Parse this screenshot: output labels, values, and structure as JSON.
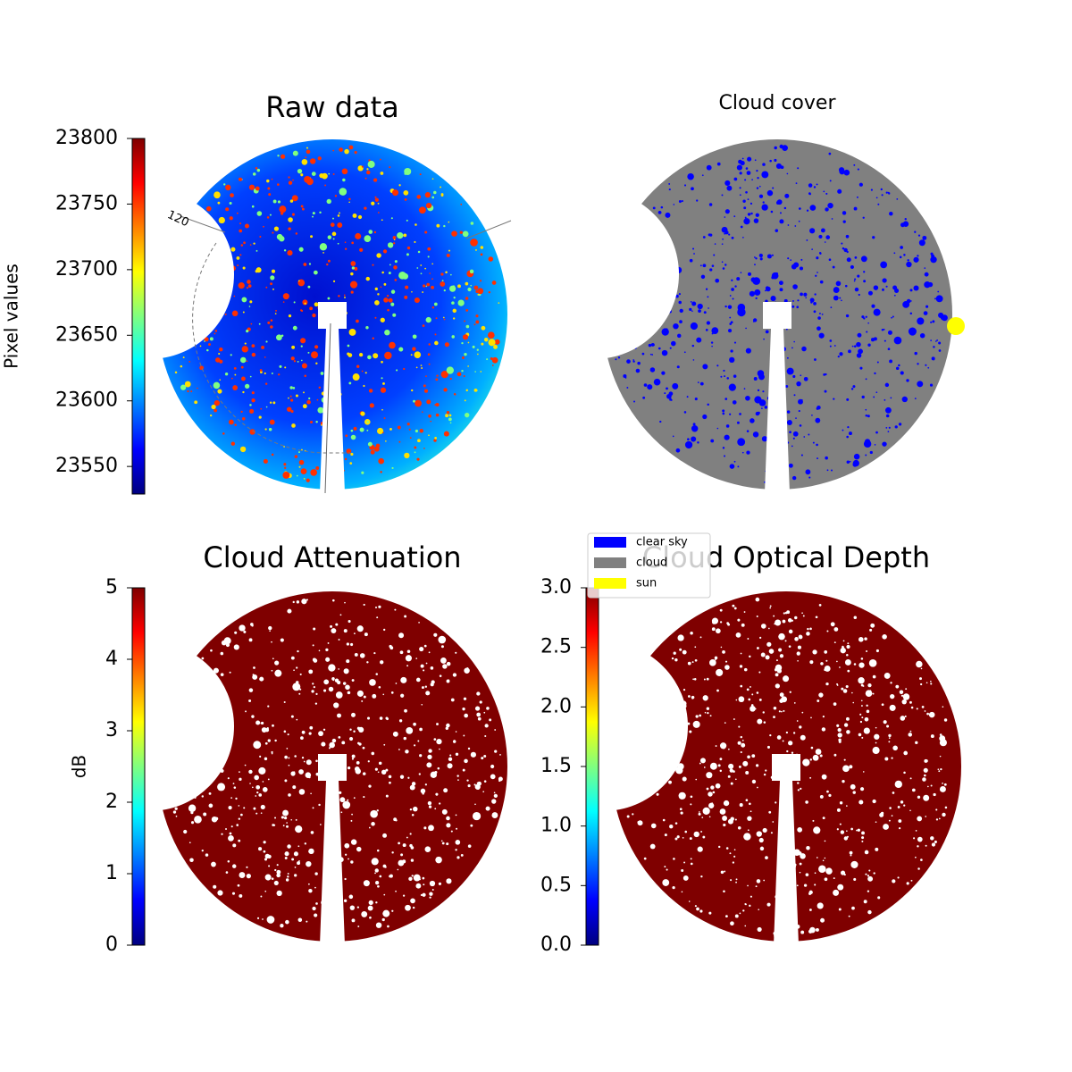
{
  "chart_data": [
    {
      "type": "image",
      "title": "Raw data",
      "colormap": "jet",
      "colorbar": {
        "label": "Pixel values",
        "lim": [
          23529,
          23800
        ],
        "ticks": [
          23550,
          23600,
          23650,
          23700,
          23750,
          23800
        ]
      },
      "annotations": [
        "120"
      ]
    },
    {
      "type": "mask",
      "title": "Cloud cover",
      "legend_items": [
        {
          "name": "clear sky",
          "color": "#0000ff"
        },
        {
          "name": "cloud",
          "color": "#808080"
        },
        {
          "name": "sun",
          "color": "#ffff00"
        }
      ]
    },
    {
      "type": "image",
      "title": "Cloud Attenuation",
      "colormap": "jet",
      "fill": "#7f0000",
      "colorbar": {
        "label": "dB",
        "lim": [
          0,
          5
        ],
        "ticks": [
          0,
          1,
          2,
          3,
          4,
          5
        ]
      }
    },
    {
      "type": "image",
      "title": "Cloud Optical Depth",
      "colormap": "jet",
      "fill": "#7f0000",
      "colorbar": {
        "lim": [
          0,
          3
        ],
        "ticks": [
          {
            "value": 0,
            "label": "0.0"
          },
          {
            "value": 0.5,
            "label": "0.5"
          },
          {
            "value": 1,
            "label": "1.0"
          },
          {
            "value": 1.5,
            "label": "1.5"
          },
          {
            "value": 2,
            "label": "2.0"
          },
          {
            "value": 2.5,
            "label": "2.5"
          },
          {
            "value": 3,
            "label": "3.0"
          }
        ]
      }
    }
  ]
}
